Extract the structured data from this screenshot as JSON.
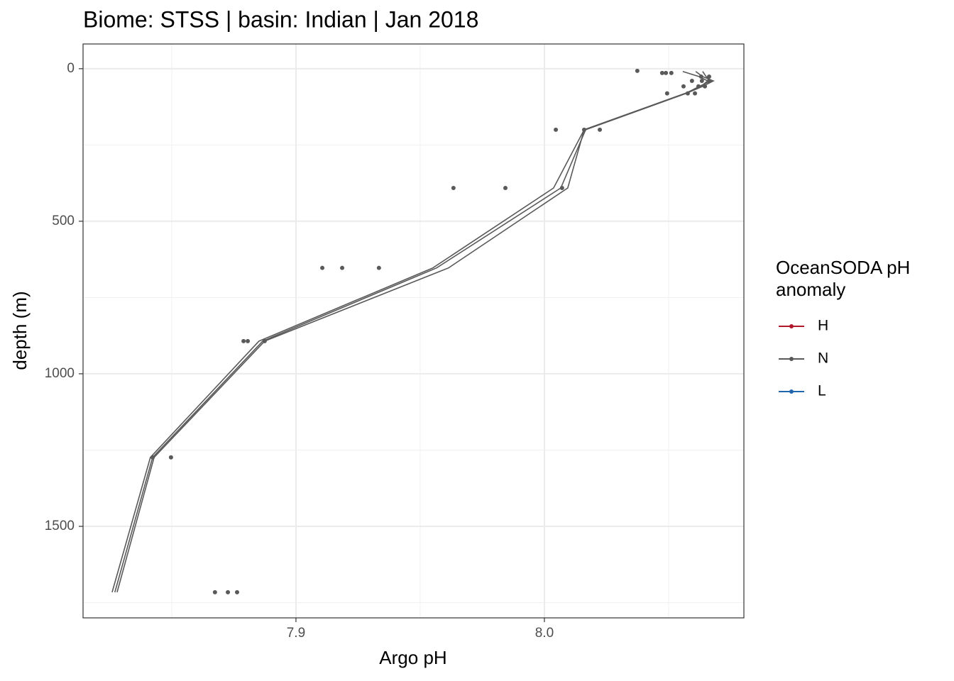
{
  "chart_data": {
    "type": "line",
    "title": "Biome: STSS | basin: Indian  | Jan 2018",
    "xlabel": "Argo pH",
    "ylabel": "depth (m)",
    "xlim": [
      7.8143,
      8.0803
    ],
    "ylim": [
      -81,
      1800
    ],
    "y_reversed": true,
    "xticks": [
      7.9,
      {
        "value": 8,
        "label": "8.0"
      }
    ],
    "yticks": [
      0,
      500,
      1000,
      1500
    ],
    "xminorticks": [
      7.85,
      7.95,
      8.05
    ],
    "yminorticks": [
      250,
      750,
      1250,
      1750
    ],
    "grid": true,
    "legend_title": "OceanSODA pH anomaly",
    "series": [
      {
        "name": "H",
        "color": "#b2182b"
      },
      {
        "name": "N",
        "color": "#595959",
        "lines": [
          {
            "x": [
              8.0557,
              8.0623,
              8.0657,
              8.0631,
              8.0566,
              8.016,
              8.0037,
              7.9551,
              7.8851,
              7.8414,
              7.826
            ],
            "y": [
              9,
              26,
              40,
              58,
              81,
              200,
              391,
              653,
              893,
              1274,
              1716
            ]
          },
          {
            "x": [
              8.0609,
              8.0637,
              8.068,
              8.0637,
              8.0571,
              8.0166,
              8.0066,
              7.9566,
              7.8866,
              7.8423,
              7.8271
            ],
            "y": [
              9,
              26,
              40,
              58,
              81,
              200,
              391,
              653,
              893,
              1274,
              1716
            ]
          },
          {
            "x": [
              8.0637,
              8.0651,
              8.0671,
              8.0623,
              8.0569,
              8.016,
              8.0094,
              7.9614,
              7.8874,
              7.8429,
              7.828
            ],
            "y": [
              9,
              26,
              40,
              58,
              81,
              200,
              391,
              653,
              893,
              1274,
              1716
            ]
          }
        ],
        "points": {
          "x": [
            8.0374,
            8.0474,
            8.0489,
            8.0511,
            8.0631,
            8.0663,
            8.0594,
            8.0634,
            8.0663,
            8.056,
            8.062,
            8.0646,
            8.0494,
            8.0577,
            8.0606,
            8.0046,
            8.016,
            8.0223,
            7.9634,
            7.9843,
            8.0071,
            7.9106,
            7.9186,
            7.9334,
            7.8789,
            7.8806,
            7.8874,
            7.8423,
            7.8497,
            7.8674,
            7.8726,
            7.8763
          ],
          "y": [
            7,
            14,
            14,
            14,
            26,
            26,
            40,
            40,
            40,
            58,
            58,
            58,
            81,
            81,
            81,
            200,
            200,
            200,
            391,
            391,
            391,
            653,
            653,
            653,
            893,
            893,
            893,
            1274,
            1274,
            1716,
            1716,
            1716
          ]
        }
      },
      {
        "name": "L",
        "color": "#2166ac"
      }
    ]
  }
}
